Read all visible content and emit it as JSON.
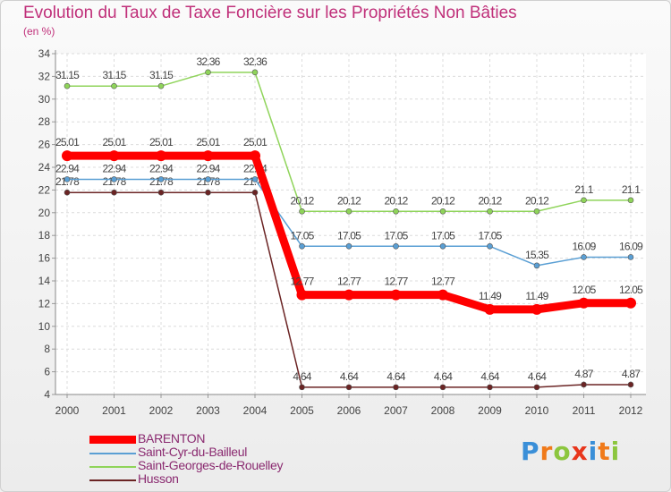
{
  "chart_data": {
    "type": "line",
    "title": "Evolution du Taux de Taxe Foncière sur les Propriétés Non Bâties",
    "ylabel": "(en %)",
    "xlabel": "",
    "ylim": [
      4,
      34
    ],
    "yticks": [
      4,
      6,
      8,
      10,
      12,
      14,
      16,
      18,
      20,
      22,
      24,
      26,
      28,
      30,
      32,
      34
    ],
    "grid": true,
    "categories": [
      "2000",
      "2001",
      "2002",
      "2003",
      "2004",
      "2005",
      "2006",
      "2007",
      "2008",
      "2009",
      "2010",
      "2011",
      "2012"
    ],
    "series": [
      {
        "name": "Husson",
        "color": "#6b2424",
        "values": [
          21.78,
          21.78,
          21.78,
          21.78,
          21.78,
          4.64,
          4.64,
          4.64,
          4.64,
          4.64,
          4.64,
          4.87,
          4.87
        ],
        "labels": [
          "21.78",
          "21.78",
          "21.78",
          "21.78",
          "21.78",
          "4.64",
          "4.64",
          "4.64",
          "4.64",
          "4.64",
          "4.64",
          "4.87",
          "4.87"
        ]
      },
      {
        "name": "Saint-Cyr-du-Bailleul",
        "color": "#5a9fd4",
        "values": [
          22.94,
          22.94,
          22.94,
          22.94,
          22.94,
          17.05,
          17.05,
          17.05,
          17.05,
          17.05,
          15.35,
          16.09,
          16.09
        ],
        "labels": [
          "22.94",
          "22.94",
          "22.94",
          "22.94",
          "22.94",
          "17.05",
          "17.05",
          "17.05",
          "17.05",
          "17.05",
          "15.35",
          "16.09",
          "16.09"
        ]
      },
      {
        "name": "Saint-Georges-de-Rouelley",
        "color": "#8fd45a",
        "values": [
          31.15,
          31.15,
          31.15,
          32.36,
          32.36,
          20.12,
          20.12,
          20.12,
          20.12,
          20.12,
          20.12,
          21.1,
          21.1
        ],
        "labels": [
          "31.15",
          "31.15",
          "31.15",
          "32.36",
          "32.36",
          "20.12",
          "20.12",
          "20.12",
          "20.12",
          "20.12",
          "20.12",
          "21.1",
          "21.1"
        ]
      },
      {
        "name": "BARENTON",
        "color": "#ff0000",
        "values": [
          25.01,
          25.01,
          25.01,
          25.01,
          25.01,
          12.77,
          12.77,
          12.77,
          12.77,
          11.49,
          11.49,
          12.05,
          12.05
        ],
        "labels": [
          "25.01",
          "25.01",
          "25.01",
          "25.01",
          "25.01",
          "12.77",
          "12.77",
          "12.77",
          "12.77",
          "11.49",
          "11.49",
          "12.05",
          "12.05"
        ]
      }
    ],
    "legend": [
      "BARENTON",
      "Saint-Cyr-du-Bailleul",
      "Saint-Georges-de-Rouelley",
      "Husson"
    ],
    "legend_position": "bottom-left"
  },
  "logo": {
    "text": "Proxiti",
    "letters": [
      "P",
      "r",
      "o",
      "x",
      "i",
      "t",
      "i"
    ],
    "colors": [
      "#3a8fd8",
      "#f07a1a",
      "#8cc63e",
      "#e8361c",
      "#3a8fd8",
      "#f07a1a",
      "#8cc63e"
    ]
  }
}
